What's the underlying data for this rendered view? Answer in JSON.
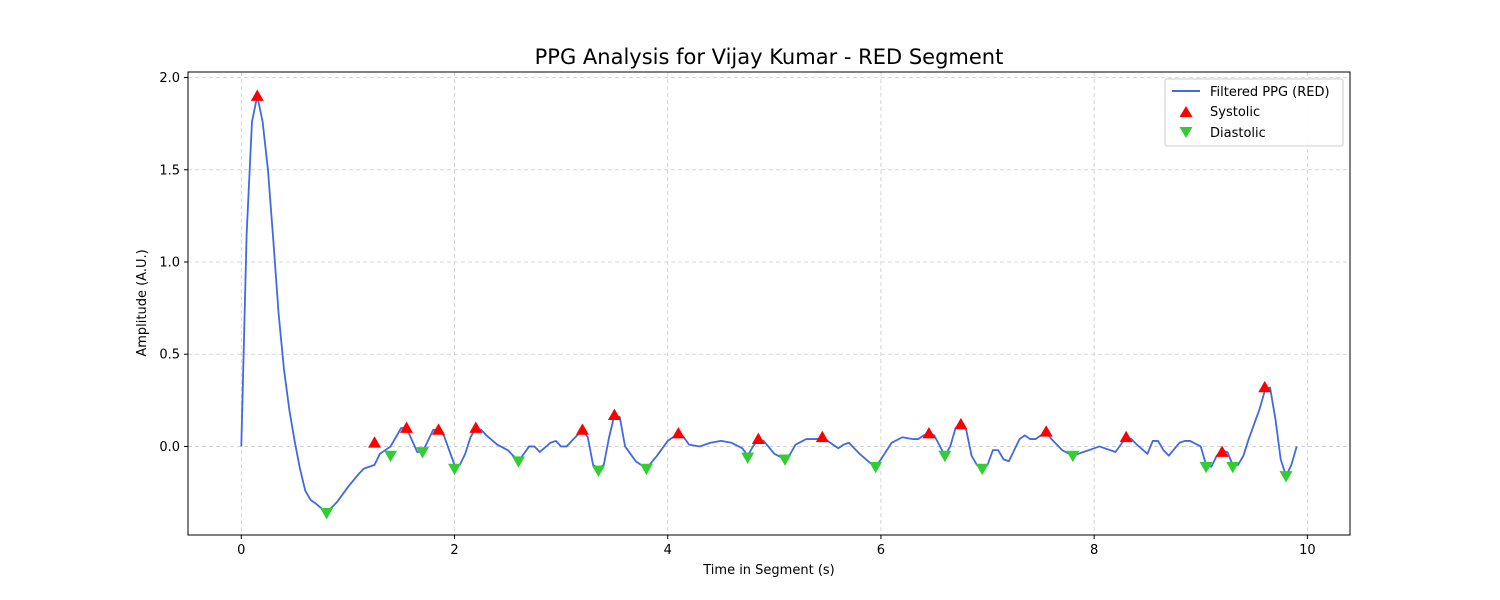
{
  "chart_data": {
    "type": "line",
    "title": "PPG Analysis for Vijay Kumar - RED Segment",
    "xlabel": "Time in Segment (s)",
    "ylabel": "Amplitude (A.U.)",
    "xlim": [
      -0.5,
      10.4
    ],
    "ylim": [
      -0.48,
      2.03
    ],
    "xticks": [
      0,
      2,
      4,
      6,
      8,
      10
    ],
    "yticks": [
      0.0,
      0.5,
      1.0,
      1.5,
      2.0
    ],
    "xtick_labels": [
      "0",
      "2",
      "4",
      "6",
      "8",
      "10"
    ],
    "ytick_labels": [
      "0.0",
      "0.5",
      "1.0",
      "1.5",
      "2.0"
    ],
    "grid": true,
    "legend_position": "top-right",
    "series": [
      {
        "name": "Filtered PPG (RED)",
        "kind": "line",
        "color": "#4169e1",
        "x": [
          0,
          0.05,
          0.1,
          0.15,
          0.2,
          0.25,
          0.3,
          0.35,
          0.4,
          0.45,
          0.5,
          0.55,
          0.6,
          0.65,
          0.7,
          0.8,
          0.9,
          1.0,
          1.1,
          1.15,
          1.25,
          1.3,
          1.4,
          1.5,
          1.55,
          1.65,
          1.7,
          1.8,
          1.85,
          1.9,
          2.0,
          2.05,
          2.1,
          2.15,
          2.2,
          2.25,
          2.3,
          2.4,
          2.5,
          2.6,
          2.7,
          2.75,
          2.8,
          2.9,
          2.95,
          3.0,
          3.05,
          3.1,
          3.2,
          3.25,
          3.3,
          3.35,
          3.4,
          3.45,
          3.5,
          3.55,
          3.6,
          3.7,
          3.8,
          3.9,
          4.0,
          4.1,
          4.15,
          4.2,
          4.3,
          4.4,
          4.5,
          4.6,
          4.7,
          4.75,
          4.8,
          4.85,
          4.9,
          5.0,
          5.1,
          5.15,
          5.2,
          5.3,
          5.35,
          5.4,
          5.45,
          5.5,
          5.55,
          5.6,
          5.65,
          5.7,
          5.8,
          5.9,
          5.95,
          6.0,
          6.1,
          6.2,
          6.3,
          6.35,
          6.4,
          6.45,
          6.5,
          6.6,
          6.65,
          6.7,
          6.75,
          6.8,
          6.85,
          6.9,
          6.95,
          7.0,
          7.05,
          7.1,
          7.15,
          7.2,
          7.3,
          7.35,
          7.4,
          7.45,
          7.5,
          7.55,
          7.6,
          7.7,
          7.8,
          7.9,
          8.0,
          8.05,
          8.1,
          8.2,
          8.25,
          8.3,
          8.35,
          8.4,
          8.5,
          8.55,
          8.6,
          8.65,
          8.7,
          8.8,
          8.85,
          8.9,
          9.0,
          9.05,
          9.1,
          9.15,
          9.2,
          9.25,
          9.3,
          9.35,
          9.4,
          9.45,
          9.5,
          9.55,
          9.6,
          9.65,
          9.7,
          9.75,
          9.8,
          9.85,
          9.9
        ],
        "y": [
          0.0,
          1.15,
          1.76,
          1.9,
          1.76,
          1.5,
          1.12,
          0.72,
          0.42,
          0.2,
          0.03,
          -0.12,
          -0.24,
          -0.29,
          -0.31,
          -0.36,
          -0.3,
          -0.22,
          -0.15,
          -0.12,
          -0.1,
          -0.04,
          0.0,
          0.1,
          0.1,
          -0.03,
          -0.03,
          0.09,
          0.09,
          0.06,
          -0.1,
          -0.1,
          -0.04,
          0.05,
          0.1,
          0.09,
          0.06,
          0.01,
          -0.02,
          -0.08,
          0.0,
          0.0,
          -0.03,
          0.02,
          0.03,
          0.0,
          0.0,
          0.03,
          0.09,
          0.05,
          -0.1,
          -0.12,
          -0.1,
          0.05,
          0.17,
          0.16,
          0.0,
          -0.08,
          -0.12,
          -0.05,
          0.03,
          0.07,
          0.05,
          0.01,
          0.0,
          0.02,
          0.03,
          0.02,
          -0.01,
          -0.05,
          0.0,
          0.04,
          0.03,
          -0.04,
          -0.07,
          -0.04,
          0.01,
          0.04,
          0.04,
          0.04,
          0.05,
          0.03,
          0.01,
          -0.01,
          0.01,
          0.02,
          -0.04,
          -0.09,
          -0.11,
          -0.07,
          0.02,
          0.05,
          0.04,
          0.04,
          0.06,
          0.07,
          0.06,
          -0.05,
          0.0,
          0.1,
          0.12,
          0.09,
          -0.05,
          -0.1,
          -0.12,
          -0.1,
          -0.02,
          -0.02,
          -0.07,
          -0.08,
          0.04,
          0.06,
          0.04,
          0.04,
          0.06,
          0.08,
          0.04,
          -0.02,
          -0.05,
          -0.03,
          -0.01,
          0.0,
          -0.01,
          -0.03,
          0.01,
          0.05,
          0.04,
          0.01,
          -0.04,
          0.03,
          0.03,
          -0.02,
          -0.05,
          0.02,
          0.03,
          0.03,
          0.0,
          -0.1,
          -0.11,
          -0.05,
          -0.03,
          -0.03,
          -0.1,
          -0.1,
          -0.05,
          0.04,
          0.12,
          0.2,
          0.3,
          0.32,
          0.15,
          -0.07,
          -0.16,
          -0.1,
          0.0
        ]
      },
      {
        "name": "Systolic",
        "kind": "marker",
        "marker": "triangle-up",
        "color": "#ff0000",
        "x": [
          0.15,
          1.25,
          1.55,
          1.85,
          2.2,
          3.2,
          3.5,
          4.1,
          4.85,
          5.45,
          6.45,
          6.75,
          7.55,
          8.3,
          9.2,
          9.6
        ],
        "y": [
          1.9,
          0.02,
          0.1,
          0.09,
          0.1,
          0.09,
          0.17,
          0.07,
          0.04,
          0.05,
          0.07,
          0.12,
          0.08,
          0.05,
          -0.03,
          0.32
        ]
      },
      {
        "name": "Diastolic",
        "kind": "marker",
        "marker": "triangle-down",
        "color": "#32cd32",
        "x": [
          0.8,
          1.4,
          1.7,
          2.0,
          2.6,
          3.35,
          3.8,
          4.75,
          5.1,
          5.95,
          6.6,
          6.95,
          7.8,
          9.05,
          9.3,
          9.8
        ],
        "y": [
          -0.36,
          -0.05,
          -0.03,
          -0.12,
          -0.08,
          -0.13,
          -0.12,
          -0.06,
          -0.07,
          -0.11,
          -0.05,
          -0.12,
          -0.05,
          -0.11,
          -0.11,
          -0.16
        ]
      }
    ]
  }
}
